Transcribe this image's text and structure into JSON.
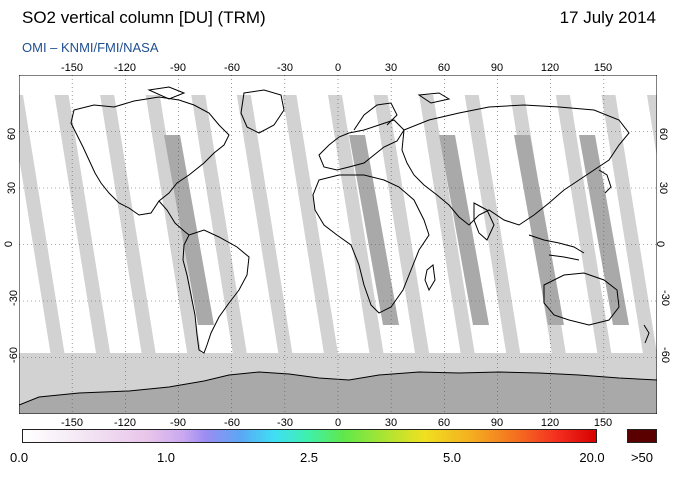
{
  "header": {
    "title": "SO2 vertical column [DU] (TRM)",
    "date": "17 July 2014",
    "source": "OMI  –  KNMI/FMI/NASA"
  },
  "map": {
    "projection": "equirectangular",
    "lon_range": [
      -180,
      180
    ],
    "lat_range": [
      -90,
      90
    ],
    "lon_ticks_top": [
      "-150",
      "-120",
      "-90",
      "-60",
      "-30",
      "0",
      "30",
      "60",
      "90",
      "120",
      "150"
    ],
    "lon_ticks_bottom": [
      "-150",
      "-120",
      "-90",
      "-60",
      "-30",
      "0",
      "30",
      "60",
      "90",
      "120",
      "150"
    ],
    "lat_ticks": [
      "60",
      "30",
      "0",
      "-30",
      "-60"
    ],
    "no_data_color": "#d2d2d2",
    "night_color": "#a9a9a9",
    "coastline_color": "#000000"
  },
  "colorbar": {
    "labels": [
      "0.0",
      "1.0",
      "2.5",
      "5.0",
      "20.0",
      ">50"
    ],
    "over_color": "#5a0000"
  }
}
